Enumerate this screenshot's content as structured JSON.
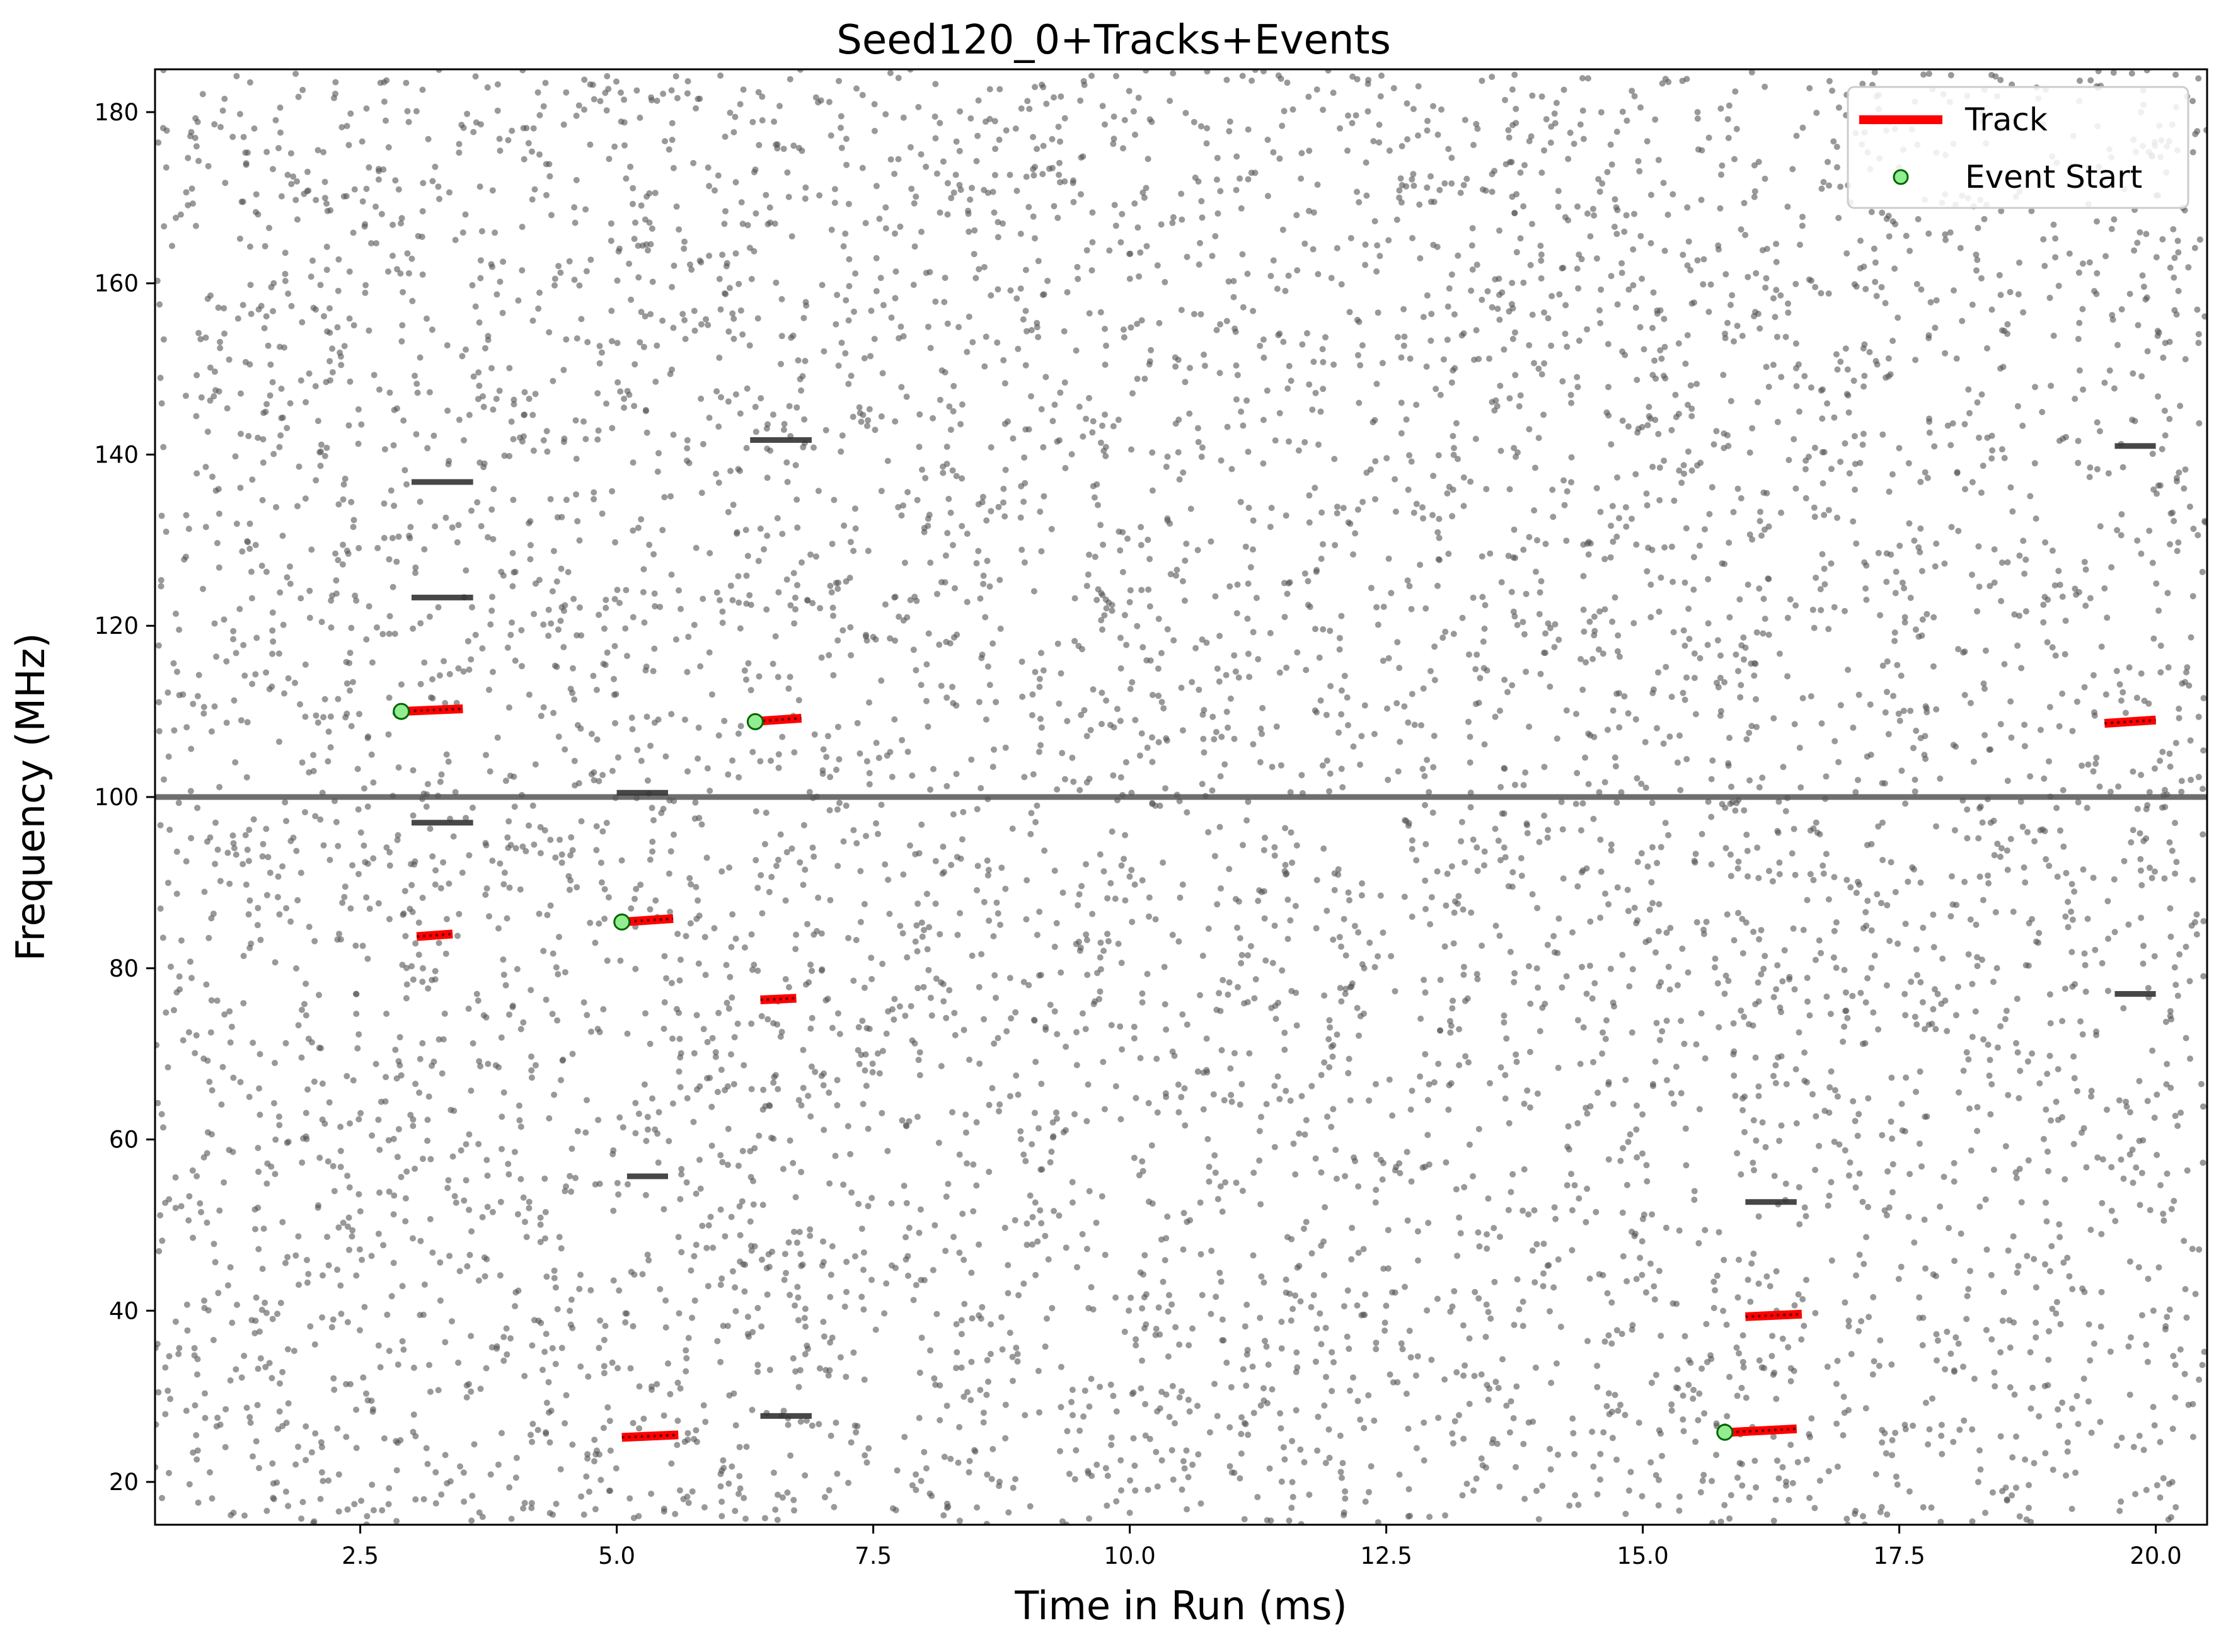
{
  "chart_data": {
    "type": "scatter",
    "title": "Seed120_0+Tracks+Events",
    "xlabel": "Time in Run (ms)",
    "ylabel": "Frequency (MHz)",
    "xlim": [
      0.5,
      20.5
    ],
    "ylim": [
      15,
      185
    ],
    "xticks": [
      2.5,
      5.0,
      7.5,
      10.0,
      12.5,
      15.0,
      17.5,
      20.0
    ],
    "xtick_labels": [
      "2.5",
      "5.0",
      "7.5",
      "10.0",
      "12.5",
      "15.0",
      "17.5",
      "20.0"
    ],
    "yticks": [
      20,
      40,
      60,
      80,
      100,
      120,
      140,
      160,
      180
    ],
    "ytick_labels": [
      "20",
      "40",
      "60",
      "80",
      "100",
      "120",
      "140",
      "160",
      "180"
    ],
    "grid": false,
    "legend": {
      "placement": "top-right",
      "entries": [
        {
          "label": "Track",
          "marker": "line",
          "color": "#ff0000"
        },
        {
          "label": "Event Start",
          "marker": "circle",
          "color": "#90ee90"
        }
      ]
    },
    "background_hits": {
      "description_units": "ms, MHz",
      "approx_count": 7000,
      "x_range": [
        0.5,
        20.5
      ],
      "y_range": [
        15,
        185
      ],
      "color": "#555555",
      "noise_seed": 120
    },
    "constant_line": {
      "y": 100.0,
      "x_range": [
        0.5,
        20.5
      ],
      "color": "#555555"
    },
    "hit_clusters": [
      {
        "x": [
          3.0,
          3.6
        ],
        "y": [
          136.8,
          136.8
        ]
      },
      {
        "x": [
          3.0,
          3.6
        ],
        "y": [
          123.3,
          123.3
        ]
      },
      {
        "x": [
          3.0,
          3.6
        ],
        "y": [
          97.0,
          97.0
        ]
      },
      {
        "x": [
          5.0,
          5.5
        ],
        "y": [
          100.5,
          100.5
        ]
      },
      {
        "x": [
          6.3,
          6.9
        ],
        "y": [
          141.7,
          141.7
        ]
      },
      {
        "x": [
          5.1,
          5.5
        ],
        "y": [
          55.7,
          55.7
        ]
      },
      {
        "x": [
          16.0,
          16.5
        ],
        "y": [
          52.7,
          52.7
        ]
      },
      {
        "x": [
          19.6,
          20.0
        ],
        "y": [
          141.0,
          141.0
        ]
      },
      {
        "x": [
          19.6,
          20.0
        ],
        "y": [
          77.0,
          77.0
        ]
      },
      {
        "x": [
          6.4,
          6.9
        ],
        "y": [
          27.7,
          27.7
        ]
      }
    ],
    "tracks": [
      {
        "name": "Track",
        "x": [
          2.9,
          3.5
        ],
        "y": [
          110.0,
          110.3
        ]
      },
      {
        "name": "Track",
        "x": [
          6.3,
          6.8
        ],
        "y": [
          108.8,
          109.2
        ]
      },
      {
        "name": "Track",
        "x": [
          19.5,
          20.0
        ],
        "y": [
          108.6,
          109.0
        ]
      },
      {
        "name": "Track",
        "x": [
          3.05,
          3.4
        ],
        "y": [
          83.7,
          84.0
        ]
      },
      {
        "name": "Track",
        "x": [
          5.05,
          5.55
        ],
        "y": [
          85.4,
          85.8
        ]
      },
      {
        "name": "Track",
        "x": [
          6.4,
          6.75
        ],
        "y": [
          76.3,
          76.5
        ]
      },
      {
        "name": "Track",
        "x": [
          16.0,
          16.55
        ],
        "y": [
          39.3,
          39.6
        ]
      },
      {
        "name": "Track",
        "x": [
          15.85,
          16.5
        ],
        "y": [
          25.8,
          26.2
        ]
      },
      {
        "name": "Track",
        "x": [
          5.05,
          5.6
        ],
        "y": [
          25.2,
          25.5
        ]
      }
    ],
    "event_starts": {
      "name": "Event Start",
      "x": [
        2.9,
        6.35,
        5.05,
        15.8
      ],
      "y": [
        110.0,
        108.8,
        85.4,
        25.8
      ]
    }
  },
  "colors": {
    "hits": "#555555",
    "track": "#ff0000",
    "event_fill": "#90ee90",
    "event_edge": "#006400",
    "axes": "#000000",
    "background": "#ffffff"
  }
}
